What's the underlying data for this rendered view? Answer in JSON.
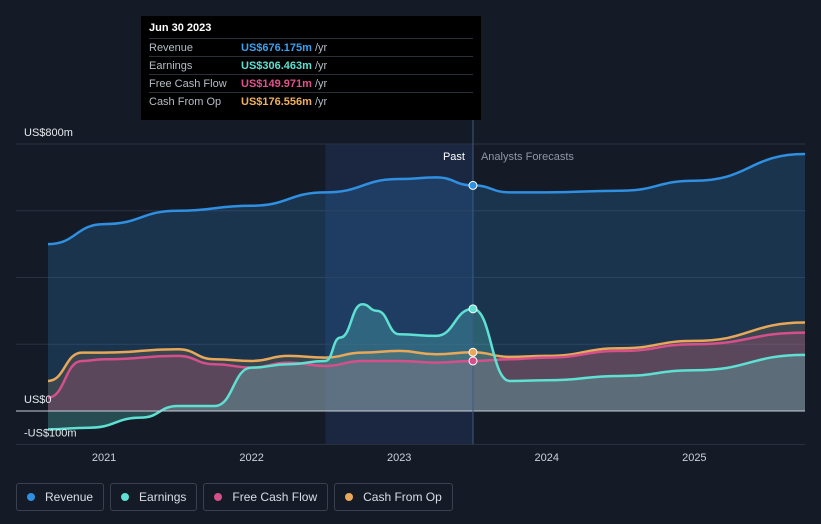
{
  "tooltip": {
    "date": "Jun 30 2023",
    "rows": [
      {
        "label": "Revenue",
        "value": "US$676.175m",
        "unit": "/yr",
        "color": "#3aa0f0"
      },
      {
        "label": "Earnings",
        "value": "US$306.463m",
        "unit": "/yr",
        "color": "#5ee0d2"
      },
      {
        "label": "Free Cash Flow",
        "value": "US$149.971m",
        "unit": "/yr",
        "color": "#e0538a"
      },
      {
        "label": "Cash From Op",
        "value": "US$176.556m",
        "unit": "/yr",
        "color": "#f0b060"
      }
    ]
  },
  "legend": [
    {
      "label": "Revenue",
      "color": "#2f8fe0"
    },
    {
      "label": "Earnings",
      "color": "#5ee0d2"
    },
    {
      "label": "Free Cash Flow",
      "color": "#d5508a"
    },
    {
      "label": "Cash From Op",
      "color": "#e8a85a"
    }
  ],
  "chart_data": {
    "type": "line",
    "y_top_label": "US$800m",
    "y_zero_label": "US$0",
    "y_bottom_label": "-US$100m",
    "ylim": [
      -100,
      800
    ],
    "xlim": [
      2020.62,
      2025.75
    ],
    "x_ticks": [
      2021,
      2022,
      2023,
      2024,
      2025
    ],
    "past_label": "Past",
    "forecast_label": "Analysts Forecasts",
    "past_shade_start": 2022.5,
    "forecast_start": 2023.5,
    "grid": true,
    "series": [
      {
        "name": "Revenue",
        "color": "#2f8fe0",
        "x": [
          2020.62,
          2021.0,
          2021.5,
          2022.0,
          2022.5,
          2023.0,
          2023.25,
          2023.5,
          2023.75,
          2024.0,
          2024.5,
          2025.0,
          2025.75
        ],
        "y": [
          500,
          560,
          600,
          615,
          655,
          695,
          700,
          676,
          655,
          655,
          660,
          690,
          770
        ]
      },
      {
        "name": "Earnings",
        "color": "#5ee0d2",
        "x": [
          2020.62,
          2020.9,
          2021.25,
          2021.5,
          2021.75,
          2022.0,
          2022.25,
          2022.5,
          2022.6,
          2022.75,
          2022.85,
          2023.0,
          2023.25,
          2023.5,
          2023.75,
          2024.0,
          2024.5,
          2025.0,
          2025.75
        ],
        "y": [
          -55,
          -50,
          -20,
          15,
          15,
          130,
          140,
          150,
          220,
          320,
          300,
          230,
          225,
          306,
          90,
          92,
          105,
          122,
          168
        ]
      },
      {
        "name": "Free Cash Flow",
        "color": "#d5508a",
        "x": [
          2020.62,
          2020.85,
          2021.0,
          2021.5,
          2021.75,
          2022.0,
          2022.25,
          2022.5,
          2022.75,
          2023.0,
          2023.25,
          2023.5,
          2023.75,
          2024.0,
          2024.5,
          2025.0,
          2025.75
        ],
        "y": [
          40,
          150,
          155,
          165,
          140,
          130,
          145,
          135,
          150,
          150,
          145,
          150,
          155,
          160,
          180,
          200,
          235
        ]
      },
      {
        "name": "Cash From Op",
        "color": "#e8a85a",
        "x": [
          2020.62,
          2020.85,
          2021.0,
          2021.5,
          2021.75,
          2022.0,
          2022.25,
          2022.5,
          2022.75,
          2023.0,
          2023.25,
          2023.5,
          2023.75,
          2024.0,
          2024.5,
          2025.0,
          2025.75
        ],
        "y": [
          90,
          175,
          175,
          185,
          155,
          150,
          165,
          160,
          175,
          180,
          170,
          176,
          162,
          165,
          188,
          210,
          265
        ]
      }
    ],
    "highlight_x": 2023.5
  }
}
